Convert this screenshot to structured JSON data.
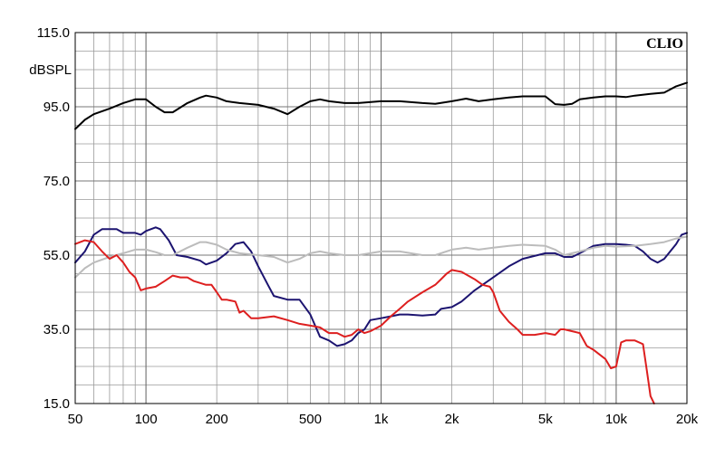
{
  "chart_data": {
    "type": "line",
    "title": "",
    "brand": "CLIO",
    "ylabel": "dBSPL",
    "xlabel": "",
    "xscale": "log",
    "xlim": [
      50,
      20000
    ],
    "ylim": [
      15,
      115
    ],
    "grid": true,
    "y_ticks": [
      {
        "value": 115,
        "label": "115.0"
      },
      {
        "value": 95,
        "label": "95.0"
      },
      {
        "value": 75,
        "label": "75.0"
      },
      {
        "value": 55,
        "label": "55.0"
      },
      {
        "value": 35,
        "label": "35.0"
      },
      {
        "value": 15,
        "label": "15.0"
      }
    ],
    "x_ticks": [
      {
        "value": 50,
        "label": "50"
      },
      {
        "value": 100,
        "label": "100"
      },
      {
        "value": 200,
        "label": "200"
      },
      {
        "value": 500,
        "label": "500"
      },
      {
        "value": 1000,
        "label": "1k"
      },
      {
        "value": 2000,
        "label": "2k"
      },
      {
        "value": 5000,
        "label": "5k"
      },
      {
        "value": 10000,
        "label": "10k"
      },
      {
        "value": 20000,
        "label": "20k"
      }
    ],
    "series": [
      {
        "color": "#000000",
        "points": [
          [
            50,
            89
          ],
          [
            55,
            91.5
          ],
          [
            60,
            93
          ],
          [
            70,
            94.5
          ],
          [
            80,
            96
          ],
          [
            90,
            97
          ],
          [
            100,
            97
          ],
          [
            110,
            95
          ],
          [
            120,
            93.5
          ],
          [
            130,
            93.5
          ],
          [
            150,
            96
          ],
          [
            170,
            97.5
          ],
          [
            180,
            98
          ],
          [
            200,
            97.5
          ],
          [
            220,
            96.5
          ],
          [
            250,
            96
          ],
          [
            300,
            95.5
          ],
          [
            350,
            94.5
          ],
          [
            400,
            93
          ],
          [
            450,
            95
          ],
          [
            500,
            96.5
          ],
          [
            550,
            97
          ],
          [
            600,
            96.5
          ],
          [
            700,
            96
          ],
          [
            800,
            96
          ],
          [
            1000,
            96.5
          ],
          [
            1200,
            96.5
          ],
          [
            1500,
            96
          ],
          [
            1700,
            95.8
          ],
          [
            2000,
            96.5
          ],
          [
            2300,
            97.2
          ],
          [
            2600,
            96.5
          ],
          [
            3000,
            97
          ],
          [
            3500,
            97.5
          ],
          [
            4000,
            97.8
          ],
          [
            5000,
            97.8
          ],
          [
            5500,
            95.7
          ],
          [
            6000,
            95.5
          ],
          [
            6500,
            95.8
          ],
          [
            7000,
            97
          ],
          [
            8000,
            97.5
          ],
          [
            9000,
            97.8
          ],
          [
            10000,
            97.8
          ],
          [
            11000,
            97.6
          ],
          [
            12000,
            98
          ],
          [
            14000,
            98.5
          ],
          [
            16000,
            98.8
          ],
          [
            18000,
            100.5
          ],
          [
            20000,
            101.5
          ]
        ]
      },
      {
        "color": "#1c1470",
        "points": [
          [
            50,
            53
          ],
          [
            55,
            56
          ],
          [
            60,
            60.5
          ],
          [
            65,
            62
          ],
          [
            75,
            62
          ],
          [
            80,
            61
          ],
          [
            90,
            61
          ],
          [
            95,
            60.5
          ],
          [
            100,
            61.5
          ],
          [
            110,
            62.5
          ],
          [
            115,
            62
          ],
          [
            125,
            59
          ],
          [
            135,
            55
          ],
          [
            150,
            54.5
          ],
          [
            170,
            53.5
          ],
          [
            180,
            52.5
          ],
          [
            200,
            53.5
          ],
          [
            220,
            55.5
          ],
          [
            240,
            58
          ],
          [
            260,
            58.5
          ],
          [
            280,
            56
          ],
          [
            300,
            52
          ],
          [
            330,
            47
          ],
          [
            350,
            44
          ],
          [
            400,
            43
          ],
          [
            450,
            43
          ],
          [
            500,
            39
          ],
          [
            550,
            33
          ],
          [
            600,
            32
          ],
          [
            650,
            30.5
          ],
          [
            700,
            31
          ],
          [
            750,
            32
          ],
          [
            800,
            34
          ],
          [
            850,
            35
          ],
          [
            900,
            37.5
          ],
          [
            1000,
            38
          ],
          [
            1100,
            38.5
          ],
          [
            1200,
            39
          ],
          [
            1300,
            39
          ],
          [
            1500,
            38.7
          ],
          [
            1700,
            39
          ],
          [
            1800,
            40.5
          ],
          [
            2000,
            41
          ],
          [
            2200,
            42.5
          ],
          [
            2500,
            45.5
          ],
          [
            3000,
            49
          ],
          [
            3500,
            52
          ],
          [
            4000,
            54
          ],
          [
            5000,
            55.5
          ],
          [
            5500,
            55.5
          ],
          [
            6000,
            54.5
          ],
          [
            6500,
            54.5
          ],
          [
            7000,
            55.5
          ],
          [
            8000,
            57.5
          ],
          [
            9000,
            58
          ],
          [
            10000,
            58
          ],
          [
            11000,
            57.8
          ],
          [
            12000,
            57.5
          ],
          [
            13000,
            56
          ],
          [
            14000,
            54
          ],
          [
            15000,
            53
          ],
          [
            16000,
            54
          ],
          [
            18000,
            58
          ],
          [
            19000,
            60.5
          ],
          [
            20000,
            61
          ]
        ]
      },
      {
        "color": "#bcbcbc",
        "points": [
          [
            50,
            49
          ],
          [
            55,
            51.5
          ],
          [
            60,
            53
          ],
          [
            70,
            54.5
          ],
          [
            80,
            55.5
          ],
          [
            90,
            56.5
          ],
          [
            100,
            56.5
          ],
          [
            110,
            55.8
          ],
          [
            120,
            55
          ],
          [
            130,
            55
          ],
          [
            150,
            57
          ],
          [
            170,
            58.5
          ],
          [
            180,
            58.5
          ],
          [
            200,
            57.8
          ],
          [
            220,
            56.5
          ],
          [
            250,
            55.5
          ],
          [
            300,
            55
          ],
          [
            350,
            54.5
          ],
          [
            400,
            53
          ],
          [
            450,
            54
          ],
          [
            500,
            55.5
          ],
          [
            550,
            56
          ],
          [
            600,
            55.5
          ],
          [
            700,
            55
          ],
          [
            800,
            55
          ],
          [
            1000,
            56
          ],
          [
            1200,
            56
          ],
          [
            1500,
            55
          ],
          [
            1700,
            55
          ],
          [
            2000,
            56.5
          ],
          [
            2300,
            57
          ],
          [
            2600,
            56.5
          ],
          [
            3000,
            57
          ],
          [
            3500,
            57.5
          ],
          [
            4000,
            57.8
          ],
          [
            5000,
            57.5
          ],
          [
            5500,
            56.5
          ],
          [
            6000,
            55
          ],
          [
            6500,
            55.5
          ],
          [
            7000,
            56
          ],
          [
            8000,
            57
          ],
          [
            9000,
            57.5
          ],
          [
            10000,
            57.3
          ],
          [
            12000,
            57.5
          ],
          [
            14000,
            58
          ],
          [
            16000,
            58.5
          ],
          [
            18000,
            59.5
          ],
          [
            20000,
            60
          ]
        ]
      },
      {
        "color": "#dd1f1f",
        "points": [
          [
            50,
            58
          ],
          [
            55,
            59
          ],
          [
            60,
            58.5
          ],
          [
            65,
            56
          ],
          [
            70,
            54
          ],
          [
            75,
            55
          ],
          [
            80,
            53
          ],
          [
            85,
            50.5
          ],
          [
            90,
            49
          ],
          [
            95,
            45.5
          ],
          [
            100,
            46
          ],
          [
            110,
            46.5
          ],
          [
            120,
            48
          ],
          [
            130,
            49.5
          ],
          [
            140,
            49
          ],
          [
            150,
            49
          ],
          [
            160,
            48
          ],
          [
            170,
            47.5
          ],
          [
            180,
            47
          ],
          [
            190,
            47
          ],
          [
            200,
            45
          ],
          [
            210,
            43
          ],
          [
            220,
            43
          ],
          [
            240,
            42.5
          ],
          [
            250,
            39.5
          ],
          [
            260,
            40
          ],
          [
            280,
            38
          ],
          [
            300,
            38
          ],
          [
            350,
            38.5
          ],
          [
            400,
            37.5
          ],
          [
            450,
            36.5
          ],
          [
            500,
            36
          ],
          [
            550,
            35.5
          ],
          [
            600,
            34
          ],
          [
            650,
            34
          ],
          [
            700,
            33
          ],
          [
            750,
            33.5
          ],
          [
            800,
            35
          ],
          [
            850,
            34
          ],
          [
            900,
            34.5
          ],
          [
            1000,
            36
          ],
          [
            1100,
            38.5
          ],
          [
            1200,
            40.5
          ],
          [
            1300,
            42.5
          ],
          [
            1500,
            45
          ],
          [
            1700,
            47
          ],
          [
            1800,
            48.5
          ],
          [
            1900,
            50
          ],
          [
            2000,
            51
          ],
          [
            2200,
            50.5
          ],
          [
            2500,
            48.5
          ],
          [
            2700,
            47
          ],
          [
            2900,
            46.5
          ],
          [
            3000,
            45
          ],
          [
            3200,
            40
          ],
          [
            3500,
            37
          ],
          [
            3800,
            35
          ],
          [
            4000,
            33.5
          ],
          [
            4500,
            33.5
          ],
          [
            5000,
            34
          ],
          [
            5500,
            33.5
          ],
          [
            5800,
            35
          ],
          [
            6000,
            35
          ],
          [
            6500,
            34.5
          ],
          [
            7000,
            34
          ],
          [
            7500,
            30.5
          ],
          [
            8000,
            29.5
          ],
          [
            9000,
            27
          ],
          [
            9500,
            24.5
          ],
          [
            10000,
            25
          ],
          [
            10500,
            31.5
          ],
          [
            11000,
            32
          ],
          [
            12000,
            32
          ],
          [
            13000,
            31
          ],
          [
            13500,
            24
          ],
          [
            14000,
            17
          ],
          [
            14500,
            15
          ]
        ]
      }
    ]
  }
}
